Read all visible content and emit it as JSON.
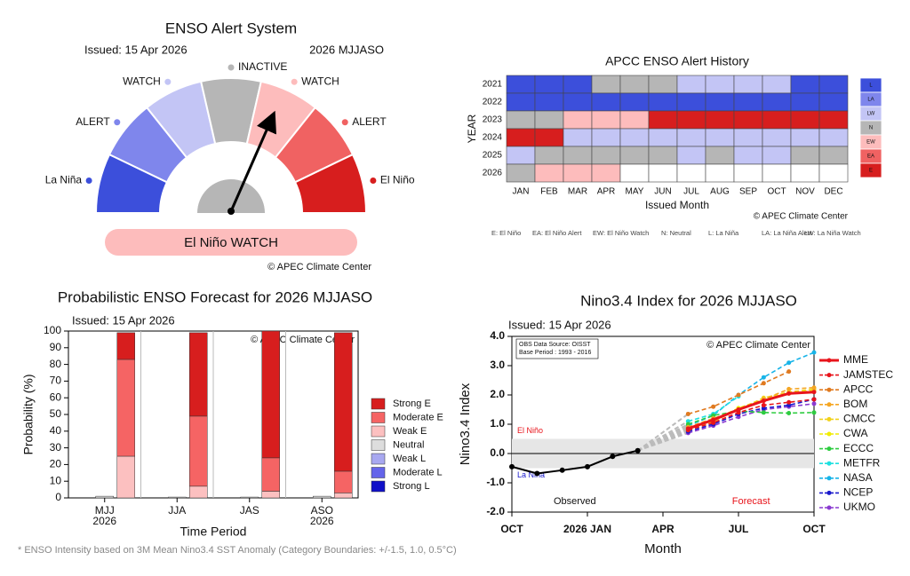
{
  "alert_system": {
    "title": "ENSO Alert System",
    "issued": "Issued: 15 Apr 2026",
    "season": "2026 MJJASO",
    "segments": [
      {
        "label": "La Niña",
        "color": "#3c4fdb"
      },
      {
        "label": "ALERT",
        "color": "#7f86ec"
      },
      {
        "label": "WATCH",
        "color": "#c3c5f5"
      },
      {
        "label": "INACTIVE",
        "color": "#b6b6b6"
      },
      {
        "label": "WATCH",
        "color": "#fdbcbc"
      },
      {
        "label": "ALERT",
        "color": "#f06262"
      },
      {
        "label": "El Niño",
        "color": "#d71e1e"
      }
    ],
    "status": "El Niño WATCH",
    "credit": "© APEC Climate Center"
  },
  "chart_data": [
    {
      "type": "heatmap",
      "title": "APCC ENSO Alert History",
      "y_label": "YEAR",
      "x_label": "Issued Month",
      "rows": [
        "2021",
        "2022",
        "2023",
        "2024",
        "2025",
        "2026"
      ],
      "categories": [
        "JAN",
        "FEB",
        "MAR",
        "APR",
        "MAY",
        "JUN",
        "JUL",
        "AUG",
        "SEP",
        "OCT",
        "NOV",
        "DEC"
      ],
      "values": [
        [
          "L",
          "L",
          "L",
          "N",
          "N",
          "N",
          "LW",
          "LW",
          "LW",
          "LW",
          "L",
          "L"
        ],
        [
          "L",
          "L",
          "L",
          "L",
          "L",
          "L",
          "L",
          "L",
          "L",
          "L",
          "L",
          "L"
        ],
        [
          "N",
          "N",
          "EW",
          "EW",
          "EW",
          "E",
          "E",
          "E",
          "E",
          "E",
          "E",
          "E"
        ],
        [
          "E",
          "E",
          "LW",
          "LW",
          "LW",
          "LW",
          "LW",
          "LW",
          "LW",
          "LW",
          "LW",
          "LW"
        ],
        [
          "LW",
          "N",
          "N",
          "N",
          "N",
          "N",
          "LW",
          "N",
          "LW",
          "LW",
          "N",
          "N"
        ],
        [
          "N",
          "EW",
          "EW",
          "EW",
          null,
          null,
          null,
          null,
          null,
          null,
          null,
          null
        ]
      ],
      "legend": [
        {
          "label": "L",
          "color": "#3c4fdb"
        },
        {
          "label": "LA",
          "color": "#7f86ec"
        },
        {
          "label": "LW",
          "color": "#c3c5f5"
        },
        {
          "label": "N",
          "color": "#b6b6b6"
        },
        {
          "label": "EW",
          "color": "#fdbcbc"
        },
        {
          "label": "EA",
          "color": "#f06262"
        },
        {
          "label": "E",
          "color": "#d71e1e"
        }
      ],
      "key": [
        "E: El Niño",
        "EA: El Niño Alert",
        "EW: El Niño Watch",
        "N: Neutral",
        "L: La Niña",
        "LA: La Niña Alert",
        "LW: La Niña Watch"
      ],
      "credit": "© APEC Climate Center"
    },
    {
      "type": "bar",
      "title": "Probabilistic ENSO Forecast for 2026 MJJASO",
      "issued": "Issued: 15 Apr 2026",
      "credit": "© APEC Climate Center",
      "x_label": "Time Period",
      "y_label": "Probability (%)",
      "categories": [
        "MJJ",
        "JJA",
        "JAS",
        "ASO"
      ],
      "category_years": [
        "2026",
        null,
        null,
        "2026"
      ],
      "ylim": [
        0,
        100
      ],
      "yticks": [
        0,
        10,
        20,
        30,
        40,
        50,
        60,
        70,
        80,
        90,
        100
      ],
      "series": [
        {
          "name": "Strong E",
          "color": "#d71e1e",
          "values": [
            16,
            50,
            76,
            83
          ]
        },
        {
          "name": "Moderate E",
          "color": "#f56464",
          "values": [
            58,
            42,
            20,
            13
          ]
        },
        {
          "name": "Weak E",
          "color": "#fcc0c0",
          "values": [
            25,
            7,
            4,
            3
          ]
        },
        {
          "name": "Neutral",
          "color": "#dddddd",
          "values": [
            1,
            0.5,
            0.5,
            1
          ]
        },
        {
          "name": "Weak L",
          "color": "#a8a8f0",
          "values": [
            0,
            0,
            0,
            0
          ]
        },
        {
          "name": "Moderate L",
          "color": "#6464ea",
          "values": [
            0,
            0,
            0,
            0
          ]
        },
        {
          "name": "Strong L",
          "color": "#1010c8",
          "values": [
            0,
            0,
            0,
            0
          ]
        }
      ]
    },
    {
      "type": "line",
      "title": "Nino3.4 Index for 2026 MJJASO",
      "issued": "Issued: 15 Apr 2026",
      "credit": "© APEC Climate Center",
      "source_note": [
        "OBS Data Source: OISST",
        "Base Period : 1993 - 2016"
      ],
      "x_label": "Month",
      "y_label": "Nino3.4 Index",
      "xlim": [
        0,
        12
      ],
      "xticks": [
        {
          "value": 0,
          "label": "OCT"
        },
        {
          "value": 3,
          "label": "2026 JAN"
        },
        {
          "value": 6,
          "label": "APR"
        },
        {
          "value": 9,
          "label": "JUL"
        },
        {
          "value": 12,
          "label": "OCT"
        }
      ],
      "ylim": [
        -2,
        4
      ],
      "yticks": [
        {
          "value": -2,
          "label": "-2.0"
        },
        {
          "value": -1,
          "label": "-1.0"
        },
        {
          "value": 0,
          "label": "0.0"
        },
        {
          "value": 1,
          "label": "1.0"
        },
        {
          "value": 2,
          "label": "2.0"
        },
        {
          "value": 3,
          "label": "3.0"
        },
        {
          "value": 4,
          "label": "4.0"
        }
      ],
      "band": [
        -0.5,
        0.5
      ],
      "band_labels": [
        {
          "text": "El Niño",
          "color": "#e8141b"
        },
        {
          "text": "La Niña",
          "color": "#1a1acc"
        }
      ],
      "observed": {
        "label": "Observed",
        "x": [
          0,
          1,
          2,
          3,
          4,
          5
        ],
        "values": [
          -0.45,
          -0.68,
          -0.57,
          -0.45,
          -0.1,
          0.1
        ]
      },
      "forecast_label": "Forecast",
      "series": [
        {
          "name": "MME",
          "color": "#e8141b",
          "dashed": false,
          "x": [
            7,
            8,
            9,
            10,
            11,
            12
          ],
          "values": [
            0.85,
            1.15,
            1.5,
            1.8,
            2.05,
            2.1
          ]
        },
        {
          "name": "JAMSTEC",
          "color": "#e8141b",
          "dashed": true,
          "x": [
            7,
            8,
            9,
            10,
            11,
            12
          ],
          "values": [
            0.8,
            1.05,
            1.4,
            1.65,
            1.75,
            1.85
          ]
        },
        {
          "name": "APCC",
          "color": "#e07a20",
          "dashed": true,
          "x": [
            7,
            8,
            9,
            10,
            11,
            12
          ],
          "values": [
            1.35,
            1.6,
            2.0,
            2.4,
            2.8,
            null
          ]
        },
        {
          "name": "BOM",
          "color": "#f5a623",
          "dashed": true,
          "x": [
            7,
            8,
            9,
            10,
            11,
            12
          ],
          "values": [
            0.9,
            1.2,
            1.5,
            1.85,
            2.2,
            2.25
          ]
        },
        {
          "name": "CMCC",
          "color": "#f2d21b",
          "dashed": true,
          "x": [
            7,
            8,
            9,
            10,
            11,
            12
          ],
          "values": [
            0.8,
            1.1,
            1.5,
            1.9,
            2.1,
            2.2
          ]
        },
        {
          "name": "CWA",
          "color": "#f0ec00",
          "dashed": true,
          "x": [
            7,
            8,
            9,
            10,
            11,
            12
          ],
          "values": [
            0.85,
            1.15,
            1.55,
            1.85,
            2.05,
            2.15
          ]
        },
        {
          "name": "ECCC",
          "color": "#2ecc40",
          "dashed": true,
          "x": [
            7,
            8,
            9,
            10,
            11,
            12
          ],
          "values": [
            1.0,
            1.3,
            1.45,
            1.4,
            1.38,
            1.4
          ]
        },
        {
          "name": "METFR",
          "color": "#1ee0e0",
          "dashed": true,
          "x": [
            7,
            8,
            9,
            10,
            11,
            12
          ],
          "values": [
            1.1,
            1.35,
            1.95,
            null,
            null,
            null
          ]
        },
        {
          "name": "NASA",
          "color": "#18b4e8",
          "dashed": true,
          "x": [
            7,
            8,
            9,
            10,
            11,
            12
          ],
          "values": [
            0.95,
            1.3,
            2.0,
            2.6,
            3.1,
            3.45
          ]
        },
        {
          "name": "NCEP",
          "color": "#1a1acc",
          "dashed": true,
          "x": [
            7,
            8,
            9,
            10,
            11,
            12
          ],
          "values": [
            0.75,
            1.0,
            1.35,
            1.55,
            1.65,
            1.85
          ]
        },
        {
          "name": "UKMO",
          "color": "#8a3ad0",
          "dashed": true,
          "x": [
            7,
            8,
            9,
            10,
            11,
            12
          ],
          "values": [
            0.7,
            0.95,
            1.25,
            1.5,
            1.6,
            1.7
          ]
        }
      ]
    }
  ],
  "footnote": "* ENSO Intensity based on 3M Mean Nino3.4 SST Anomaly (Category Boundaries: +/-1.5, 1.0, 0.5°C)"
}
